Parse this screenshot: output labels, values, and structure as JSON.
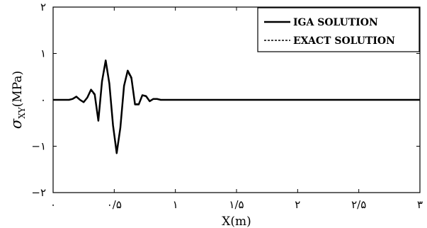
{
  "chart_data": {
    "type": "line",
    "xlabel": "X(m)",
    "ylabel_main": "σ",
    "ylabel_sub": "XY",
    "ylabel_unit": "(MPa)",
    "xlim": [
      0,
      3
    ],
    "ylim": [
      -2,
      2
    ],
    "x_ticks": [
      {
        "value": 0,
        "label": "۰"
      },
      {
        "value": 0.5,
        "label": "۰/۵"
      },
      {
        "value": 1,
        "label": "۱"
      },
      {
        "value": 1.5,
        "label": "۱/۵"
      },
      {
        "value": 2,
        "label": "۲"
      },
      {
        "value": 2.5,
        "label": "۲/۵"
      },
      {
        "value": 3,
        "label": "۳"
      }
    ],
    "y_ticks": [
      {
        "value": -2,
        "label": "−۲"
      },
      {
        "value": -1,
        "label": "−۱"
      },
      {
        "value": 0,
        "label": "۰"
      },
      {
        "value": 1,
        "label": "۱"
      },
      {
        "value": 2,
        "label": "۲"
      }
    ],
    "grid": false,
    "legend_position": "top-right",
    "series": [
      {
        "name": "IGA SOLUTION",
        "style": "solid",
        "color": "#000000",
        "x": [
          0,
          0.05,
          0.1,
          0.13,
          0.16,
          0.19,
          0.22,
          0.25,
          0.28,
          0.31,
          0.34,
          0.37,
          0.4,
          0.43,
          0.46,
          0.49,
          0.52,
          0.55,
          0.58,
          0.61,
          0.64,
          0.67,
          0.7,
          0.73,
          0.76,
          0.79,
          0.82,
          0.85,
          0.88,
          0.9,
          1.0,
          1.5,
          2.0,
          2.5,
          3.0
        ],
        "y": [
          0,
          0,
          0,
          0,
          0.02,
          0.07,
          0.0,
          -0.05,
          0.05,
          0.22,
          0.12,
          -0.45,
          0.4,
          0.85,
          0.35,
          -0.55,
          -1.15,
          -0.6,
          0.3,
          0.63,
          0.48,
          -0.1,
          -0.1,
          0.1,
          0.08,
          -0.03,
          0.02,
          0.02,
          0.0,
          0,
          0,
          0,
          0,
          0,
          0
        ]
      },
      {
        "name": "EXACT SOLUTION",
        "style": "dashed",
        "color": "#000000",
        "x": [
          0,
          0.05,
          0.1,
          0.13,
          0.16,
          0.19,
          0.22,
          0.25,
          0.28,
          0.31,
          0.34,
          0.37,
          0.4,
          0.43,
          0.46,
          0.49,
          0.52,
          0.55,
          0.58,
          0.61,
          0.64,
          0.67,
          0.7,
          0.73,
          0.76,
          0.79,
          0.82,
          0.85,
          0.88,
          0.9,
          1.0,
          1.5,
          2.0,
          2.5,
          3.0
        ],
        "y": [
          0,
          0,
          0,
          0,
          0.02,
          0.06,
          0.0,
          -0.05,
          0.05,
          0.2,
          0.1,
          -0.42,
          0.38,
          0.8,
          0.33,
          -0.52,
          -1.1,
          -0.58,
          0.28,
          0.6,
          0.45,
          -0.08,
          -0.09,
          0.09,
          0.07,
          -0.02,
          0.02,
          0.01,
          0.0,
          0,
          0,
          0,
          0,
          0,
          0
        ]
      }
    ]
  }
}
